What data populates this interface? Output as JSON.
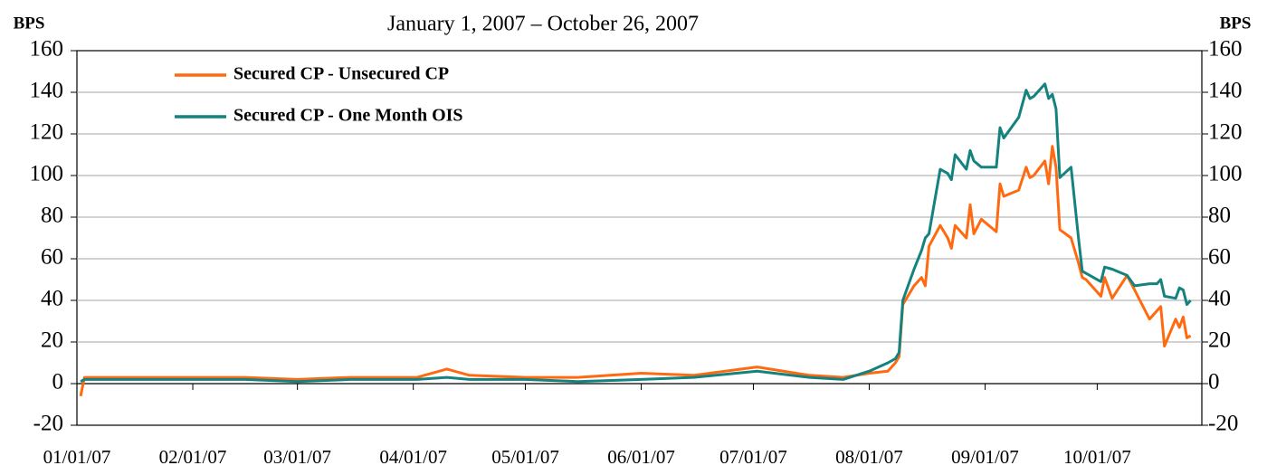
{
  "chart_data": {
    "type": "line",
    "subtitle": "January 1, 2007 – October 26, 2007",
    "y_label": "BPS",
    "y2_label": "BPS",
    "x": [
      "01/02/07",
      "01/03/07",
      "01/16/07",
      "02/01/07",
      "02/15/07",
      "03/01/07",
      "03/15/07",
      "04/02/07",
      "04/10/07",
      "04/16/07",
      "05/01/07",
      "05/15/07",
      "06/01/07",
      "06/15/07",
      "07/02/07",
      "07/16/07",
      "07/25/07",
      "08/01/07",
      "08/06/07",
      "08/08/07",
      "08/09/07",
      "08/10/07",
      "08/13/07",
      "08/15/07",
      "08/16/07",
      "08/17/07",
      "08/20/07",
      "08/22/07",
      "08/23/07",
      "08/24/07",
      "08/27/07",
      "08/28/07",
      "08/29/07",
      "08/31/07",
      "09/04/07",
      "09/05/07",
      "09/06/07",
      "09/10/07",
      "09/12/07",
      "09/13/07",
      "09/14/07",
      "09/17/07",
      "09/18/07",
      "09/19/07",
      "09/20/07",
      "09/21/07",
      "09/24/07",
      "09/26/07",
      "09/27/07",
      "09/28/07",
      "10/02/07",
      "10/03/07",
      "10/05/07",
      "10/09/07",
      "10/11/07",
      "10/15/07",
      "10/17/07",
      "10/18/07",
      "10/19/07",
      "10/22/07",
      "10/23/07",
      "10/24/07",
      "10/25/07",
      "10/26/07"
    ],
    "series": [
      {
        "name": "Secured CP - Unsecured CP",
        "color": "#ff6a10",
        "values": [
          -6,
          3,
          3,
          3,
          3,
          2,
          3,
          3,
          7,
          4,
          3,
          3,
          5,
          4,
          8,
          4,
          3,
          5,
          6,
          10,
          13,
          38,
          47,
          51,
          47,
          66,
          76,
          70,
          65,
          76,
          70,
          86,
          72,
          79,
          73,
          96,
          90,
          93,
          104,
          99,
          100,
          107,
          96,
          114,
          104,
          74,
          70,
          58,
          51,
          50,
          42,
          51,
          41,
          52,
          45,
          31,
          35,
          37,
          18,
          31,
          27,
          32,
          22,
          23
        ]
      },
      {
        "name": "Secured CP - One Month OIS",
        "color": "#14827e",
        "values": [
          1,
          2,
          2,
          2,
          2,
          1,
          2,
          2,
          3,
          2,
          2,
          1,
          2,
          3,
          6,
          3,
          2,
          6,
          10,
          12,
          15,
          40,
          55,
          64,
          70,
          72,
          103,
          101,
          98,
          110,
          103,
          112,
          107,
          104,
          104,
          123,
          118,
          128,
          141,
          137,
          138,
          144,
          137,
          139,
          132,
          99,
          104,
          70,
          54,
          53,
          49,
          56,
          55,
          52,
          47,
          48,
          48,
          50,
          42,
          41,
          46,
          45,
          38,
          40
        ]
      }
    ],
    "xlim": [
      "01/01/07",
      "10/29/07"
    ],
    "xticks": [
      "01/01/07",
      "02/01/07",
      "03/01/07",
      "04/01/07",
      "05/01/07",
      "06/01/07",
      "07/01/07",
      "08/01/07",
      "09/01/07",
      "10/01/07"
    ],
    "ylim": [
      -20,
      160
    ],
    "yticks": [
      -20,
      0,
      20,
      40,
      60,
      80,
      100,
      120,
      140,
      160
    ],
    "y2lim": [
      -20,
      160
    ],
    "y2ticks": [
      -20,
      0,
      20,
      40,
      60,
      80,
      100,
      120,
      140,
      160
    ],
    "grid": true,
    "legend": "upper left"
  }
}
